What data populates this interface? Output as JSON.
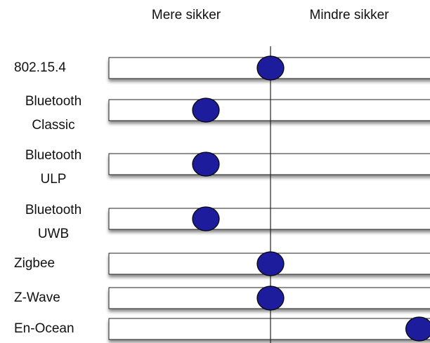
{
  "chart_data": {
    "type": "dot",
    "column_labels": [
      "Mere sikker",
      "Mindre sikker"
    ],
    "categories": [
      [
        "802.15.4"
      ],
      [
        "Bluetooth",
        "Classic"
      ],
      [
        "Bluetooth",
        "ULP"
      ],
      [
        "Bluetooth",
        "UWB"
      ],
      [
        "Zigbee"
      ],
      [
        "Z-Wave"
      ],
      [
        "En-Ocean"
      ]
    ],
    "values": [
      0,
      -0.4,
      -0.4,
      -0.4,
      0,
      0,
      0.92
    ],
    "xlim": [
      -1,
      1
    ],
    "color": "#1c1c9c"
  }
}
